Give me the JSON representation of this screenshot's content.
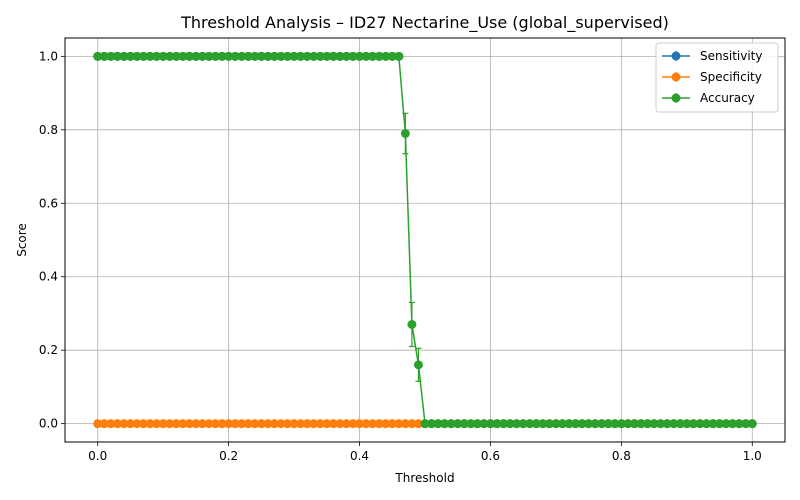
{
  "chart_data": {
    "type": "line",
    "title": "Threshold Analysis – ID27 Nectarine_Use (global_supervised)",
    "xlabel": "Threshold",
    "ylabel": "Score",
    "xlim": [
      -0.05,
      1.05
    ],
    "ylim": [
      -0.05,
      1.05
    ],
    "xticks": [
      0.0,
      0.2,
      0.4,
      0.6,
      0.8,
      1.0
    ],
    "xtick_labels": [
      "0.0",
      "0.2",
      "0.4",
      "0.6",
      "0.8",
      "1.0"
    ],
    "yticks": [
      0.0,
      0.2,
      0.4,
      0.6,
      0.8,
      1.0
    ],
    "ytick_labels": [
      "0.0",
      "0.2",
      "0.4",
      "0.6",
      "0.8",
      "1.0"
    ],
    "grid": true,
    "legend_position": "upper right",
    "x": {
      "start": 0.0,
      "stop": 1.0,
      "step": 0.01
    },
    "series": [
      {
        "name": "Sensitivity",
        "color": "#1f77b4",
        "marker": "circle",
        "values": "all 1.0 up to threshold 0.46 (same as Accuracy; hidden beneath it)"
      },
      {
        "name": "Specificity",
        "color": "#ff7f0e",
        "marker": "circle",
        "constant": 0.0
      },
      {
        "name": "Accuracy",
        "color": "#2ca02c",
        "marker": "circle",
        "segments": [
          {
            "from": 0.0,
            "to": 0.46,
            "value": 1.0
          },
          {
            "x": 0.47,
            "value": 0.79,
            "err": 0.055
          },
          {
            "x": 0.48,
            "value": 0.27,
            "err": 0.06
          },
          {
            "x": 0.49,
            "value": 0.16,
            "err": 0.045
          },
          {
            "from": 0.5,
            "to": 1.0,
            "value": 0.0
          }
        ]
      }
    ]
  }
}
